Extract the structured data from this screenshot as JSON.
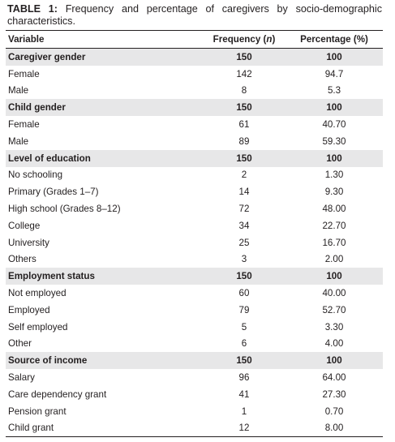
{
  "caption": {
    "label": "TABLE 1:",
    "text": " Frequency and percentage of caregivers by socio-demographic characteristics."
  },
  "table": {
    "headers": {
      "variable": "Variable",
      "frequency": "Frequency (",
      "frequency_n": "n",
      "frequency_close": ")",
      "percentage": "Percentage (%)"
    },
    "rows": [
      {
        "variable": "Caregiver gender",
        "frequency": "150",
        "percentage": "100",
        "category": true
      },
      {
        "variable": "Female",
        "frequency": "142",
        "percentage": "94.7"
      },
      {
        "variable": "Male",
        "frequency": "8",
        "percentage": "5.3"
      },
      {
        "variable": "Child gender",
        "frequency": "150",
        "percentage": "100",
        "category": true
      },
      {
        "variable": "Female",
        "frequency": "61",
        "percentage": "40.70"
      },
      {
        "variable": "Male",
        "frequency": "89",
        "percentage": "59.30"
      },
      {
        "variable": "Level of education",
        "frequency": "150",
        "percentage": "100",
        "category": true
      },
      {
        "variable": "No schooling",
        "frequency": "2",
        "percentage": "1.30"
      },
      {
        "variable": "Primary (Grades 1–7)",
        "frequency": "14",
        "percentage": "9.30"
      },
      {
        "variable": "High school (Grades 8–12)",
        "frequency": "72",
        "percentage": "48.00"
      },
      {
        "variable": "College",
        "frequency": "34",
        "percentage": "22.70"
      },
      {
        "variable": "University",
        "frequency": "25",
        "percentage": "16.70"
      },
      {
        "variable": "Others",
        "frequency": "3",
        "percentage": "2.00"
      },
      {
        "variable": "Employment status",
        "frequency": "150",
        "percentage": "100",
        "category": true
      },
      {
        "variable": "Not employed",
        "frequency": "60",
        "percentage": "40.00"
      },
      {
        "variable": "Employed",
        "frequency": "79",
        "percentage": "52.70"
      },
      {
        "variable": "Self employed",
        "frequency": "5",
        "percentage": "3.30"
      },
      {
        "variable": "Other",
        "frequency": "6",
        "percentage": "4.00"
      },
      {
        "variable": "Source of income",
        "frequency": "150",
        "percentage": "100",
        "category": true
      },
      {
        "variable": "Salary",
        "frequency": "96",
        "percentage": "64.00"
      },
      {
        "variable": "Care dependency grant",
        "frequency": "41",
        "percentage": "27.30"
      },
      {
        "variable": "Pension grant",
        "frequency": "1",
        "percentage": "0.70"
      },
      {
        "variable": "Child grant",
        "frequency": "12",
        "percentage": "8.00"
      }
    ]
  }
}
